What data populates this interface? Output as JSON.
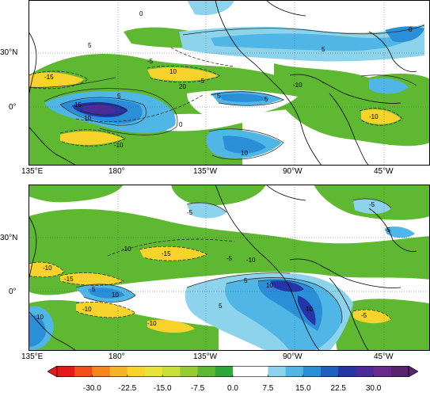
{
  "panels": [
    {
      "name": "top",
      "lat_labels": [
        "30°N",
        "0°"
      ],
      "lon_labels": [
        "135°E",
        "180°",
        "135°W",
        "90°W",
        "45°W"
      ],
      "contour_labels": [
        "0",
        "5",
        "-5",
        "-15",
        "10",
        "20",
        "15",
        "5",
        "10",
        "-5",
        "5",
        "0",
        "-10",
        "5",
        "10",
        "-10",
        "-10",
        "5",
        "0"
      ]
    },
    {
      "name": "bottom",
      "lat_labels": [
        "30°N",
        "0°"
      ],
      "lon_labels": [
        "135°E",
        "180°",
        "135°W",
        "90°W",
        "45°W"
      ],
      "contour_labels": [
        "-5",
        "-5",
        "-10",
        "-15",
        "-10",
        "-15",
        "5",
        "10",
        "-5",
        "-10",
        "10",
        "5",
        "-10",
        "-10",
        "10",
        "5",
        "10",
        "-5",
        "-5"
      ]
    }
  ],
  "colorbar": {
    "ticks": [
      "-30.0",
      "-22.5",
      "-15.0",
      "-7.5",
      "0.0",
      "7.5",
      "15.0",
      "22.5",
      "30.0"
    ],
    "colors": [
      "#e31a1c",
      "#f24e1a",
      "#f7851c",
      "#f9b426",
      "#f7d32b",
      "#e8e23a",
      "#c9df3a",
      "#99cc33",
      "#5fb832",
      "#2ea83a",
      "#ffffff",
      "#ffffff",
      "#8dd3ec",
      "#4fb6e6",
      "#2a8fd6",
      "#2060bf",
      "#2535a8",
      "#4b2a9a",
      "#6a2a8c",
      "#58246f"
    ]
  }
}
